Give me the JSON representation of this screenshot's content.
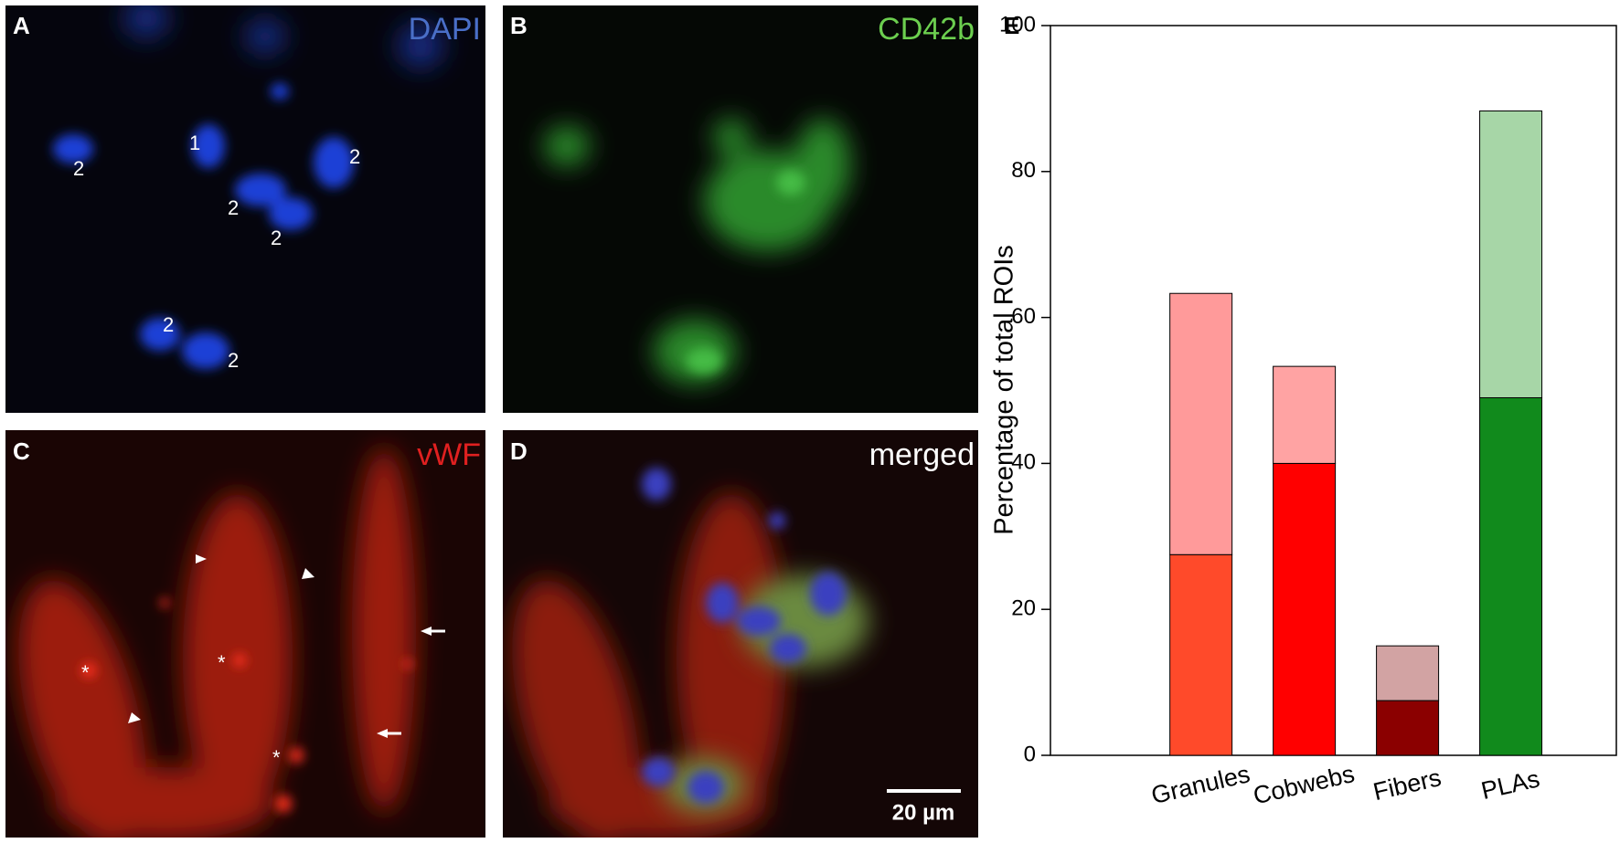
{
  "panels": [
    {
      "letter": "A",
      "stain": "DAPI",
      "labels": [
        "1",
        "2",
        "2",
        "2",
        "2",
        "2",
        "2"
      ]
    },
    {
      "letter": "B",
      "stain": "CD42b"
    },
    {
      "letter": "C",
      "stain": "vWF",
      "labels": [
        "*",
        "*",
        "*"
      ]
    },
    {
      "letter": "D",
      "stain": "merged",
      "scale_bar": "20 µm"
    }
  ],
  "chart_data": {
    "type": "bar",
    "stacked": true,
    "panel_letter": "E",
    "ylabel": "Percentage of total ROIs",
    "categories": [
      "Granules",
      "Cobwebs",
      "Fibers",
      "PLAs"
    ],
    "series": [
      {
        "colors": [
          "#ff4a2a",
          "#ff0000",
          "#8b0000",
          "#118a1c"
        ],
        "values": [
          27.5,
          40,
          7.5,
          49
        ]
      },
      {
        "colors": [
          "#ff9a9a",
          "#ffa3a3",
          "#d2a3a3",
          "#a7d6a7"
        ],
        "values": [
          35.8,
          13.3,
          7.5,
          39.3
        ]
      }
    ],
    "ylim": [
      0,
      100
    ],
    "yticks": [
      0,
      20,
      40,
      60,
      80,
      100
    ],
    "grid": false
  }
}
